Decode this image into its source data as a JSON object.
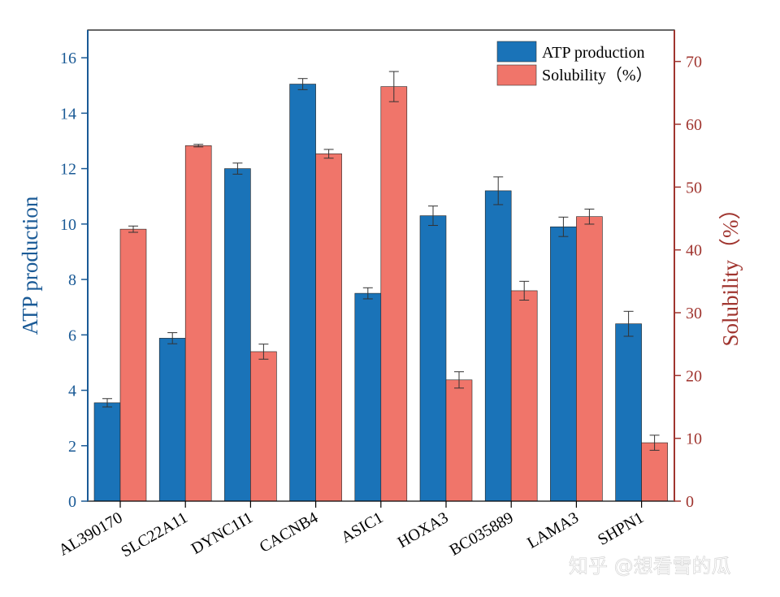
{
  "chart_data": {
    "type": "bar",
    "categories": [
      "AL390170",
      "SLC22A11",
      "DYNC1I1",
      "CACNB4",
      "ASIC1",
      "HOXA3",
      "BC035889",
      "LAMA3",
      "SHPN1"
    ],
    "series": [
      {
        "name": "ATP production",
        "axis": "left",
        "color": "#1a73b8",
        "values": [
          3.55,
          5.88,
          12.0,
          15.05,
          7.5,
          10.3,
          11.2,
          9.9,
          6.4
        ],
        "errors": [
          0.15,
          0.2,
          0.2,
          0.2,
          0.2,
          0.35,
          0.5,
          0.35,
          0.45
        ]
      },
      {
        "name": "Solubility（%）",
        "axis": "right",
        "color": "#f0756a",
        "values": [
          43.3,
          56.6,
          23.8,
          55.3,
          66.0,
          19.3,
          33.5,
          45.3,
          9.3
        ],
        "errors": [
          0.5,
          0.2,
          1.2,
          0.7,
          2.4,
          1.3,
          1.5,
          1.2,
          1.2
        ]
      }
    ],
    "ylabel_left": "ATP production",
    "ylabel_right": "Solubility（%）",
    "ylim_left": [
      0,
      17
    ],
    "ylim_right": [
      0,
      75
    ],
    "yticks_left": [
      0,
      2,
      4,
      6,
      8,
      10,
      12,
      14,
      16
    ],
    "yticks_right": [
      0,
      10,
      20,
      30,
      40,
      50,
      60,
      70
    ],
    "left_axis_color": "#1a5a96",
    "right_axis_color": "#a0352f",
    "legend_position": "top-right",
    "grid": false
  },
  "watermark": "知乎 @想看雪的瓜"
}
